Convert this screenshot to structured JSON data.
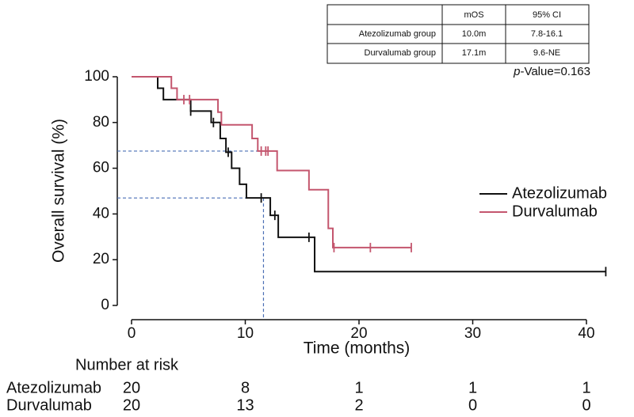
{
  "chart_data": {
    "type": "kaplan-meier",
    "x_label": "Time (months)",
    "y_label": "Overall survival (%)",
    "xlim": [
      0,
      40
    ],
    "ylim": [
      0,
      100
    ],
    "xticks": [
      0,
      10,
      20,
      30,
      40
    ],
    "yticks": [
      0,
      20,
      40,
      60,
      80,
      100
    ],
    "legend": "right",
    "series": [
      {
        "name": "Atezolizumab",
        "color": "#111111",
        "x": [
          0,
          2.3,
          2.8,
          5.2,
          7,
          7.8,
          8.3,
          8.8,
          9.5,
          10.1,
          12.2,
          12.9,
          16.1
        ],
        "values": [
          100,
          95,
          90,
          85,
          80,
          73,
          67,
          60,
          53,
          47,
          39.4,
          29.8,
          14.8
        ],
        "censor_x": [
          5.2,
          7.2,
          8.5,
          11.4,
          12.6,
          15.6,
          41.7
        ],
        "censor_values": [
          85,
          80,
          67,
          47,
          39.4,
          29.8,
          14.8
        ]
      },
      {
        "name": "Durvalumab",
        "color": "#c4566e",
        "x": [
          0,
          3.5,
          4,
          7.6,
          7.9,
          10.6,
          11.1,
          12.8,
          15.6,
          17.3,
          17.7
        ],
        "values": [
          100,
          95,
          90,
          84.5,
          79,
          73,
          67.5,
          59,
          50.6,
          33.7,
          25.3
        ],
        "censor_x": [
          4.6,
          5.1,
          11.4,
          11.8,
          12,
          17.8,
          21,
          24.6
        ],
        "censor_values": [
          90,
          90,
          67.5,
          67.5,
          67.5,
          25.3,
          25.3,
          25.3
        ]
      }
    ],
    "median_lines": {
      "color": "#4a6fb5",
      "x": [
        11.6,
        11.6
      ],
      "y": [
        67.5,
        47
      ]
    },
    "summary_table": {
      "header": [
        "mOS",
        "95% CI"
      ],
      "rows": [
        [
          "Atezolizumab group",
          "10.0m",
          "7.8-16.1"
        ],
        [
          "Durvalumab group",
          "17.1m",
          "9.6-NE"
        ]
      ]
    },
    "p_value": {
      "p": "p",
      "text": "-Value=0.163"
    },
    "number_at_risk": {
      "title": "Number at risk",
      "rows": [
        {
          "name": "Atezolizumab",
          "values": [
            20,
            8,
            1,
            1,
            1
          ]
        },
        {
          "name": "Durvalumab",
          "values": [
            20,
            13,
            2,
            0,
            0
          ]
        }
      ]
    }
  }
}
